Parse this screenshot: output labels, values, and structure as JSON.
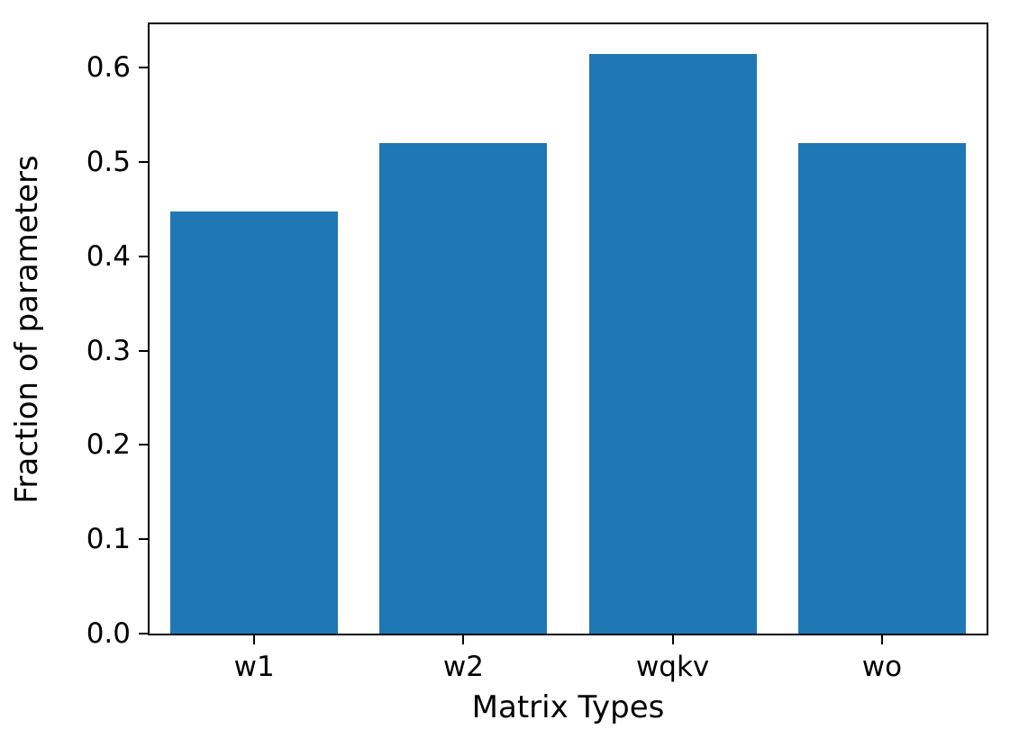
{
  "chart_data": {
    "type": "bar",
    "title": "",
    "xlabel": "Matrix Types",
    "ylabel": "Fraction of parameters",
    "categories": [
      "w1",
      "w2",
      "wqkv",
      "wo"
    ],
    "values": [
      0.448,
      0.52,
      0.615,
      0.52
    ],
    "yticks": [
      "0.0",
      "0.1",
      "0.2",
      "0.3",
      "0.4",
      "0.5",
      "0.6"
    ],
    "ytick_values": [
      0.0,
      0.1,
      0.2,
      0.3,
      0.4,
      0.5,
      0.6
    ],
    "ylim": [
      0,
      0.646
    ],
    "bar_color": "#1f77b4",
    "bar_width_fraction": 0.8,
    "grid": "off",
    "legend": "none"
  }
}
